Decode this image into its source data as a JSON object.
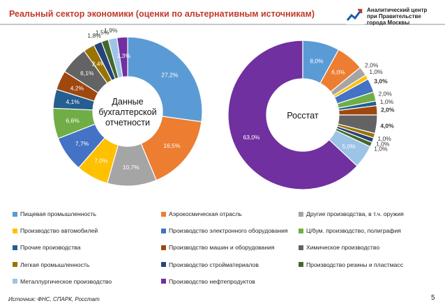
{
  "header": {
    "title": "Реальный сектор экономики (оценки по альтернативным источникам)",
    "logo_lines": [
      "Аналитический центр",
      "при Правительстве",
      "города Москвы"
    ],
    "logo_colors": {
      "accent": "#1f5fa8",
      "red": "#c0392b"
    }
  },
  "chart_data": [
    {
      "type": "pie",
      "title": "Данные бухгалтерской отчетности",
      "center_label_lines": [
        "Данные",
        "бухгалтерской",
        "отчетности"
      ],
      "slices": [
        {
          "name": "Пищевая промышленность",
          "value": 27.2,
          "label": "27,2%",
          "color": "#5b9bd5"
        },
        {
          "name": "Аэрокосмическая отрасль",
          "value": 16.5,
          "label": "16,5%",
          "color": "#ed7d31"
        },
        {
          "name": "Другие производства, в т.ч. оружия",
          "value": 10.7,
          "label": "10,7%",
          "color": "#a5a5a5"
        },
        {
          "name": "Производство автомобилей",
          "value": 7.0,
          "label": "7,0%",
          "color": "#ffc000"
        },
        {
          "name": "Производство электронного оборудования",
          "value": 7.7,
          "label": "7,7%",
          "color": "#4472c4"
        },
        {
          "name": "Ц/бум. производство, полиграфия",
          "value": 6.6,
          "label": "6,6%",
          "color": "#70ad47"
        },
        {
          "name": "Прочие производства",
          "value": 4.1,
          "label": "4,1%",
          "color": "#255e91"
        },
        {
          "name": "Производство машин и оборудования",
          "value": 4.2,
          "label": "4,2%",
          "color": "#9e480e"
        },
        {
          "name": "Химическое производство",
          "value": 6.1,
          "label": "6,1%",
          "color": "#636363"
        },
        {
          "name": "Легкая промышленность",
          "value": 2.4,
          "label": "2,4%",
          "color": "#997300"
        },
        {
          "name": "Производство стройматериалов",
          "value": 1.8,
          "label": "1,8%",
          "color": "#264478"
        },
        {
          "name": "Производство резины и пластмасс",
          "value": 1.5,
          "label": "1,5%",
          "color": "#43682b"
        },
        {
          "name": "Металлургическое производство",
          "value": 1.9,
          "label": "1,9%",
          "color": "#9dc3e6"
        },
        {
          "name": "Производство нефтепродуктов",
          "value": 2.3,
          "label": "2,3%",
          "color": "#7030a0"
        }
      ]
    },
    {
      "type": "pie",
      "title": "Росстат",
      "center_label_lines": [
        "Росстат"
      ],
      "slices": [
        {
          "name": "Пищевая промышленность",
          "value": 8.0,
          "label": "8,0%",
          "color": "#5b9bd5"
        },
        {
          "name": "Аэрокосмическая отрасль",
          "value": 6.0,
          "label": "6,0%",
          "color": "#ed7d31"
        },
        {
          "name": "Другие производства, в т.ч. оружия",
          "value": 2.0,
          "label": "2,0%",
          "color": "#a5a5a5"
        },
        {
          "name": "Производство автомобилей",
          "value": 1.0,
          "label": "1,0%",
          "color": "#ffc000"
        },
        {
          "name": "Производство электронного оборудования",
          "value": 3.0,
          "label": "3,0%",
          "color": "#4472c4"
        },
        {
          "name": "Ц/бум. производство, полиграфия",
          "value": 2.0,
          "label": "2,0%",
          "color": "#70ad47"
        },
        {
          "name": "Прочие производства",
          "value": 1.0,
          "label": "1,0%",
          "color": "#255e91"
        },
        {
          "name": "Производство машин и оборудования",
          "value": 2.0,
          "label": "2,0%",
          "color": "#9e480e"
        },
        {
          "name": "Химическое производство",
          "value": 4.0,
          "label": "4,0%",
          "color": "#636363"
        },
        {
          "name": "Легкая промышленность",
          "value": 1.0,
          "label": "1,0%",
          "color": "#997300"
        },
        {
          "name": "Производство стройматериалов",
          "value": 1.0,
          "label": "1,0%",
          "color": "#264478"
        },
        {
          "name": "Производство резины и пластмасс",
          "value": 1.0,
          "label": "1,0%",
          "color": "#43682b"
        },
        {
          "name": "Металлургическое производство",
          "value": 5.0,
          "label": "5,0%",
          "color": "#9dc3e6"
        },
        {
          "name": "Производство нефтепродуктов",
          "value": 63.0,
          "label": "63,0%",
          "color": "#7030a0"
        }
      ]
    }
  ],
  "legend": {
    "items": [
      {
        "label": "Пищевая промышленность",
        "color": "#5b9bd5"
      },
      {
        "label": "Аэрокосмическая отрасль",
        "color": "#ed7d31"
      },
      {
        "label": "Другие производства, в т.ч. оружия",
        "color": "#a5a5a5"
      },
      {
        "label": "Производство автомобилей",
        "color": "#ffc000"
      },
      {
        "label": "Производство электронного оборудования",
        "color": "#4472c4"
      },
      {
        "label": "Ц/бум. производство, полиграфия",
        "color": "#70ad47"
      },
      {
        "label": "Прочие производства",
        "color": "#255e91"
      },
      {
        "label": "Производство машин и оборудования",
        "color": "#9e480e"
      },
      {
        "label": "Химическое производство",
        "color": "#636363"
      },
      {
        "label": "Легкая промышленность",
        "color": "#997300"
      },
      {
        "label": "Производство стройматериалов",
        "color": "#264478"
      },
      {
        "label": "Производство резины и пластмасс",
        "color": "#43682b"
      },
      {
        "label": "Металлургическое производство",
        "color": "#9dc3e6"
      },
      {
        "label": "Производство нефтепродуктов",
        "color": "#7030a0"
      }
    ]
  },
  "footer": {
    "source": "Источник: ФНС, СПАРК, Росстат",
    "page_number": "5"
  }
}
